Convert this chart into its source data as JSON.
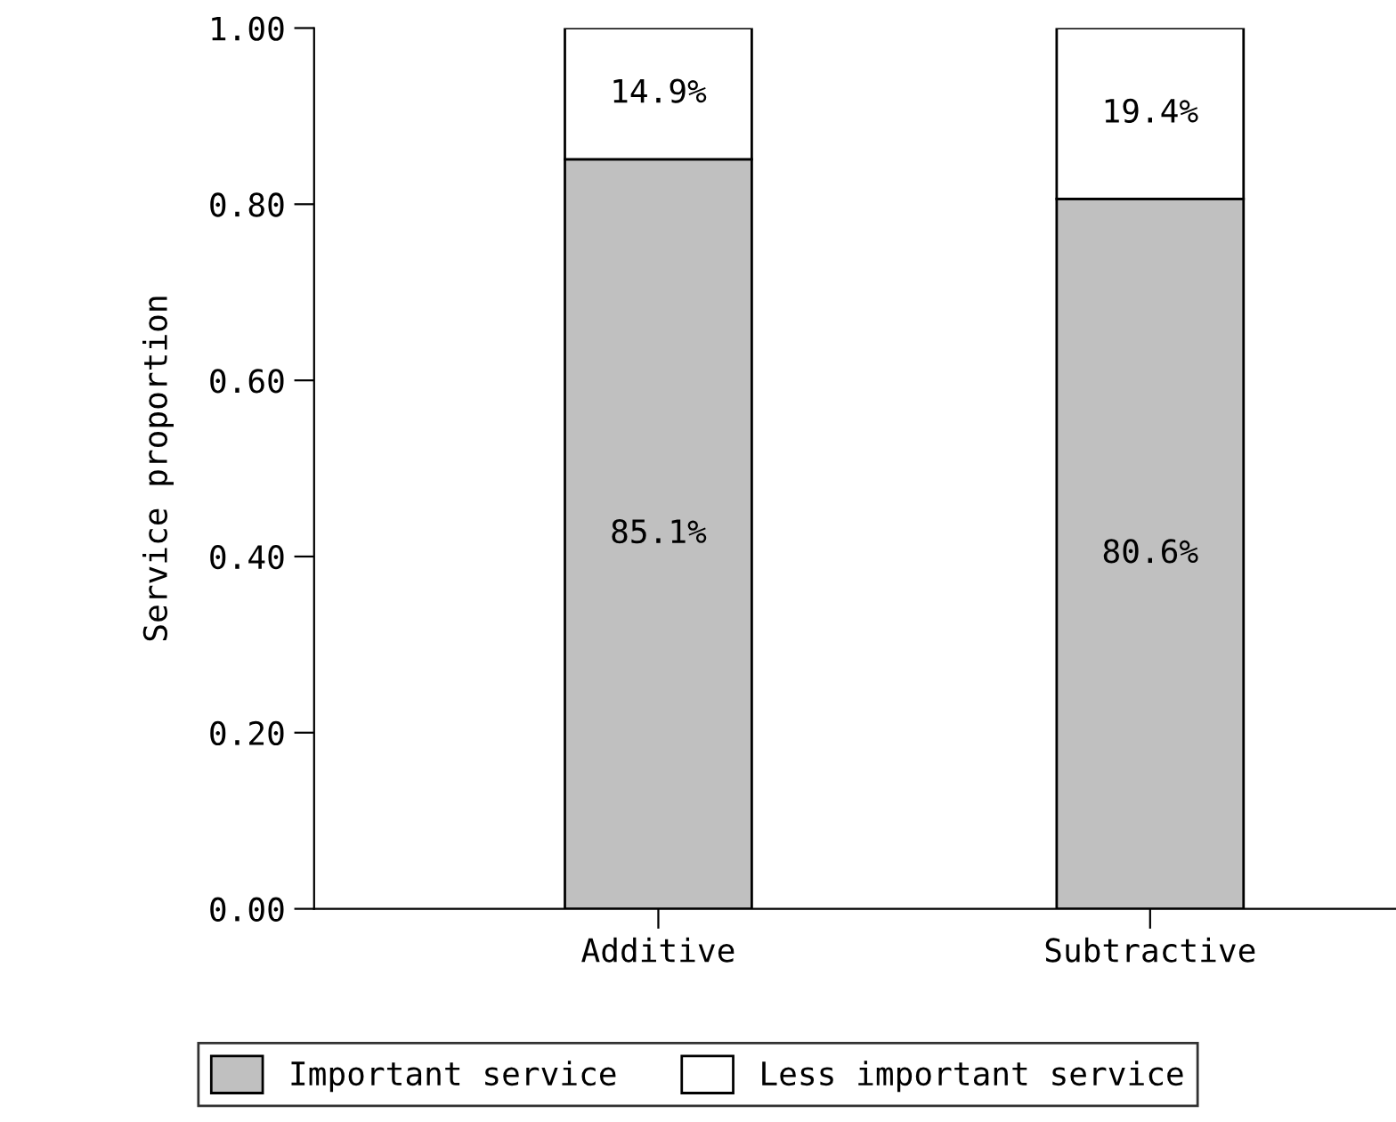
{
  "chart_data": {
    "type": "bar",
    "stacked": true,
    "ylabel": "Service proportion",
    "categories": [
      "Additive",
      "Subtractive"
    ],
    "series": [
      {
        "name": "Important service",
        "color": "#c0c0c0",
        "values": [
          0.851,
          0.806
        ],
        "value_labels": [
          "85.1%",
          "80.6%"
        ]
      },
      {
        "name": "Less important service",
        "color": "#ffffff",
        "values": [
          0.149,
          0.194
        ],
        "value_labels": [
          "14.9%",
          "19.4%"
        ]
      }
    ],
    "ylim": [
      0,
      1
    ],
    "yticks": [
      {
        "value": 0,
        "label": "0.00"
      },
      {
        "value": 0.2,
        "label": "0.20"
      },
      {
        "value": 0.4,
        "label": "0.40"
      },
      {
        "value": 0.6,
        "label": "0.60"
      },
      {
        "value": 0.8,
        "label": "0.80"
      },
      {
        "value": 1,
        "label": "1.00"
      }
    ],
    "grid": false,
    "legend": "bottom"
  }
}
